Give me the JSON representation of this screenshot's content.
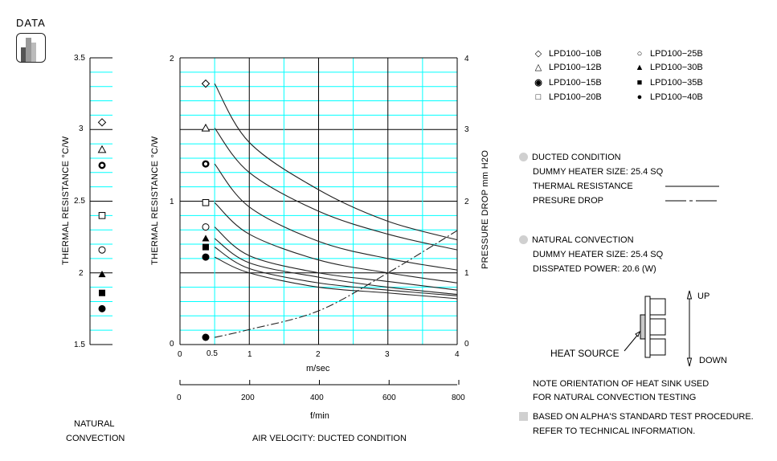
{
  "badge": {
    "label": "DATA",
    "icon": "bar-chart-icon"
  },
  "natural_chart": {
    "y_ticks": [
      "3.5",
      "3",
      "2.5",
      "2",
      "1.5"
    ],
    "ylabel": "THERMAL  RESISTANCE   °C/W",
    "caption_line1": "NATURAL",
    "caption_line2": "CONVECTION"
  },
  "ducted_chart": {
    "y_left_ticks": [
      "2",
      "1",
      "0"
    ],
    "y_right_ticks": [
      "4",
      "3",
      "2",
      "1",
      "0"
    ],
    "ylabel_left": "THERMAL  RESISTANCE   °C/W",
    "ylabel_right": "PRESSURE  DROP    mm H2O",
    "x_ticks_ms": [
      "0",
      "0.5",
      "1",
      "2",
      "3",
      "4"
    ],
    "xlabel_ms": "m/sec",
    "x_ticks_fpm": [
      "0",
      "200",
      "400",
      "600",
      "800"
    ],
    "xlabel_fpm": "f/min",
    "caption": "AIR VELOCITY:  DUCTED CONDITION"
  },
  "legend": [
    {
      "marker": "open-diamond",
      "label": "LPD100−10B"
    },
    {
      "marker": "open-triangle",
      "label": "LPD100−12B"
    },
    {
      "marker": "bold-ring",
      "label": "LPD100−15B"
    },
    {
      "marker": "open-square",
      "label": "LPD100−20B"
    },
    {
      "marker": "open-circle",
      "label": "LPD100−25B"
    },
    {
      "marker": "filled-triangle",
      "label": "LPD100−30B"
    },
    {
      "marker": "filled-square",
      "label": "LPD100−35B"
    },
    {
      "marker": "filled-circle",
      "label": "LPD100−40B"
    }
  ],
  "notes": {
    "ducted_title": "DUCTED CONDITION",
    "ducted_heater": "DUMMY HEATER SIZE:  25.4 SQ",
    "thermal_resistance": "THERMAL RESISTANCE",
    "pressure_drop": "PRESURE DROP",
    "natural_title": "NATURAL CONVECTION",
    "natural_heater": "DUMMY HEATER SIZE:  25.4 SQ",
    "dissipated_power": "DISSPATED POWER:   20.6 (W)",
    "heat_source": "HEAT SOURCE",
    "up": "UP",
    "down": "DOWN",
    "orientation_line1": "NOTE ORIENTATION OF HEAT SINK USED",
    "orientation_line2": "FOR NATURAL CONVECTION TESTING",
    "procedure_line1": "BASED ON ALPHA'S STANDARD TEST PROCEDURE.",
    "procedure_line2": "REFER TO TECHNICAL INFORMATION."
  },
  "colors": {
    "grid_minor": "#00FFFF",
    "grid_major": "#000000",
    "bullet": "#D0D0D0"
  },
  "chart_data": [
    {
      "type": "scatter",
      "title": "NATURAL CONVECTION",
      "ylabel": "THERMAL RESISTANCE °C/W",
      "ylim": [
        1.5,
        3.5
      ],
      "grid": true,
      "series": [
        {
          "name": "LPD100-10B",
          "value": 3.05
        },
        {
          "name": "LPD100-12B",
          "value": 2.86
        },
        {
          "name": "LPD100-15B",
          "value": 2.75
        },
        {
          "name": "LPD100-20B",
          "value": 2.4
        },
        {
          "name": "LPD100-25B",
          "value": 2.16
        },
        {
          "name": "LPD100-30B",
          "value": 1.99
        },
        {
          "name": "LPD100-35B",
          "value": 1.86
        },
        {
          "name": "LPD100-40B",
          "value": 1.75
        }
      ]
    },
    {
      "type": "line",
      "title": "AIR VELOCITY: DUCTED CONDITION",
      "xlabel": "m/sec",
      "xlabel_secondary": "f/min",
      "ylabel": "THERMAL RESISTANCE °C/W",
      "ylabel_right": "PRESSURE DROP mm H2O",
      "xlim": [
        0,
        4
      ],
      "ylim": [
        0,
        2
      ],
      "ylim_right": [
        0,
        4
      ],
      "grid": true,
      "x": [
        0.5,
        1,
        2,
        3,
        4
      ],
      "series": [
        {
          "name": "LPD100-10B",
          "axis": "left",
          "values": [
            1.82,
            1.41,
            1.08,
            0.86,
            0.73
          ]
        },
        {
          "name": "LPD100-12B",
          "axis": "left",
          "values": [
            1.51,
            1.2,
            0.93,
            0.77,
            0.66
          ]
        },
        {
          "name": "LPD100-15B",
          "axis": "left",
          "values": [
            1.26,
            0.96,
            0.72,
            0.6,
            0.52
          ]
        },
        {
          "name": "LPD100-20B",
          "axis": "left",
          "values": [
            0.99,
            0.77,
            0.59,
            0.5,
            0.43
          ]
        },
        {
          "name": "LPD100-25B",
          "axis": "left",
          "values": [
            0.82,
            0.62,
            0.5,
            0.44,
            0.38
          ]
        },
        {
          "name": "LPD100-30B",
          "axis": "left",
          "values": [
            0.74,
            0.57,
            0.47,
            0.4,
            0.35
          ]
        },
        {
          "name": "LPD100-35B",
          "axis": "left",
          "values": [
            0.68,
            0.53,
            0.43,
            0.38,
            0.34
          ]
        },
        {
          "name": "LPD100-40B",
          "axis": "left",
          "values": [
            0.61,
            0.5,
            0.4,
            0.36,
            0.32
          ]
        },
        {
          "name": "Pressure Drop",
          "axis": "right",
          "style": "dash-dot",
          "values": [
            0.1,
            0.21,
            0.47,
            1.0,
            1.59
          ]
        }
      ]
    }
  ]
}
